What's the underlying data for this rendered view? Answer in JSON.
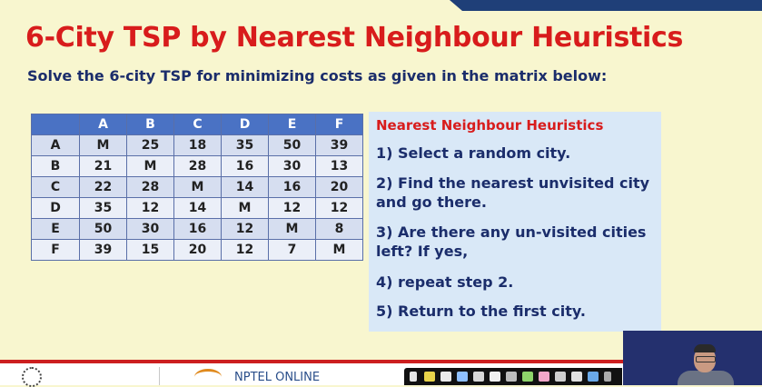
{
  "slide": {
    "title": "6-City TSP by Nearest Neighbour Heuristics",
    "subtitle": "Solve the 6-city TSP for minimizing costs as given in the matrix below:"
  },
  "matrix": {
    "columns": [
      "A",
      "B",
      "C",
      "D",
      "E",
      "F"
    ],
    "rows": [
      {
        "label": "A",
        "values": [
          "M",
          "25",
          "18",
          "35",
          "50",
          "39"
        ]
      },
      {
        "label": "B",
        "values": [
          "21",
          "M",
          "28",
          "16",
          "30",
          "13"
        ]
      },
      {
        "label": "C",
        "values": [
          "22",
          "28",
          "M",
          "14",
          "16",
          "20"
        ]
      },
      {
        "label": "D",
        "values": [
          "35",
          "12",
          "14",
          "M",
          "12",
          "12"
        ]
      },
      {
        "label": "E",
        "values": [
          "50",
          "30",
          "16",
          "12",
          "M",
          "8"
        ]
      },
      {
        "label": "F",
        "values": [
          "39",
          "15",
          "20",
          "12",
          "7",
          "M"
        ]
      }
    ]
  },
  "heuristics": {
    "title": "Nearest Neighbour Heuristics",
    "steps": [
      "1) Select a random city.",
      "2) Find the nearest unvisited city and go there.",
      "3) Are there any un-visited cities left? If yes,",
      "4) repeat step 2.",
      "5) Return to the first city."
    ]
  },
  "footer": {
    "brand": "NPTEL ONLINE"
  },
  "colors": {
    "title_red": "#d81c1c",
    "text_navy": "#1b2d6b",
    "header_blue": "#4a72c4",
    "slide_bg": "#f8f6cf",
    "box_bg": "#d9e8f7"
  }
}
